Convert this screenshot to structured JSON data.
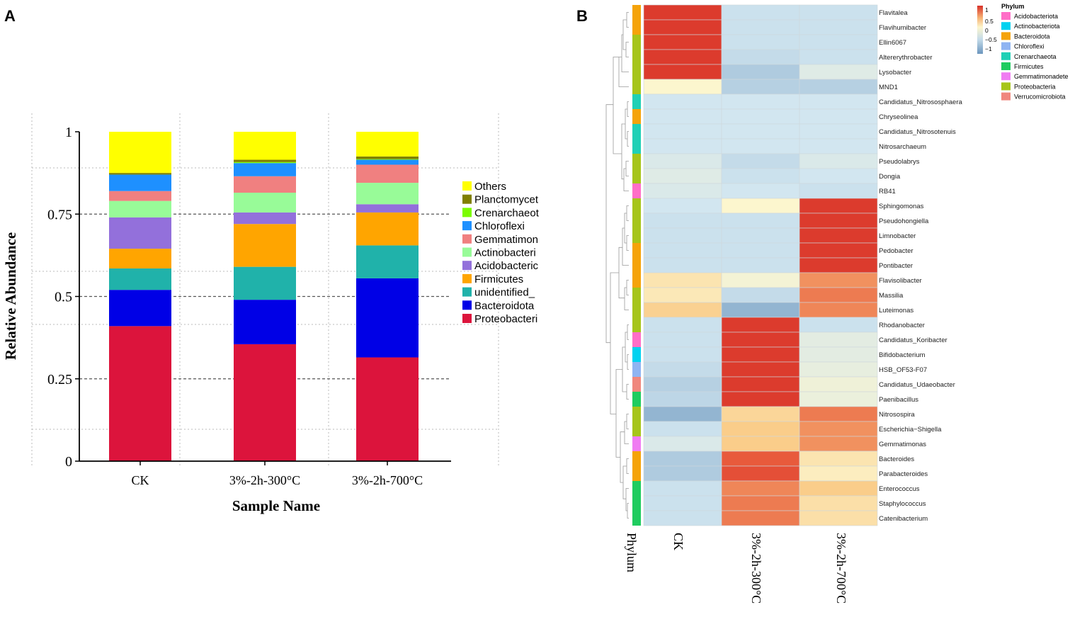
{
  "chart_data": [
    {
      "panel": "A",
      "type": "bar",
      "stacked": true,
      "xlabel": "Sample Name",
      "ylabel": "Relative Abundance",
      "ylim": [
        0,
        1
      ],
      "yticks": [
        "0",
        "0.25",
        "0.5",
        "0.75",
        "1"
      ],
      "grid": true,
      "legend_position": "right",
      "categories": [
        "CK",
        "3%-2h-300°C",
        "3%-2h-700°C"
      ],
      "series": [
        {
          "name": "Proteobacteri",
          "color": "#dc143c",
          "values": [
            0.41,
            0.355,
            0.315
          ]
        },
        {
          "name": "Bacteroidota",
          "color": "#0000e6",
          "values": [
            0.11,
            0.135,
            0.24
          ]
        },
        {
          "name": "unidentified_",
          "color": "#20b2aa",
          "values": [
            0.065,
            0.1,
            0.1
          ]
        },
        {
          "name": "Firmicutes",
          "color": "#ffa500",
          "values": [
            0.06,
            0.13,
            0.1
          ]
        },
        {
          "name": "Acidobacteric",
          "color": "#9370db",
          "values": [
            0.095,
            0.035,
            0.025
          ]
        },
        {
          "name": "Actinobacteri",
          "color": "#98fb98",
          "values": [
            0.05,
            0.06,
            0.065
          ]
        },
        {
          "name": "Gemmatimon",
          "color": "#f08080",
          "values": [
            0.03,
            0.05,
            0.055
          ]
        },
        {
          "name": "Chloroflexi",
          "color": "#1e90ff",
          "values": [
            0.05,
            0.04,
            0.015
          ]
        },
        {
          "name": "Crenarchaeot",
          "color": "#7cfc00",
          "values": [
            0.0,
            0.003,
            0.002
          ]
        },
        {
          "name": "Planctomycet",
          "color": "#808000",
          "values": [
            0.005,
            0.007,
            0.008
          ]
        },
        {
          "name": "Others",
          "color": "#ffff00",
          "values": [
            0.125,
            0.085,
            0.075
          ]
        }
      ]
    },
    {
      "panel": "B",
      "type": "heatmap",
      "columns": [
        "CK",
        "3%-2h-300°C",
        "3%-2h-700°C"
      ],
      "row_annotation_label": "Phylum",
      "color_scale": {
        "ticks": [
          "1",
          "0.5",
          "0",
          "−0.5",
          "−1"
        ]
      },
      "phylum_legend": {
        "title": "Phylum",
        "items": [
          {
            "name": "Acidobacteriota",
            "color": "#ff6ec7"
          },
          {
            "name": "Actinobacteriota",
            "color": "#00d2f0"
          },
          {
            "name": "Bacteroidota",
            "color": "#f5a30a"
          },
          {
            "name": "Chloroflexi",
            "color": "#8fb4f2"
          },
          {
            "name": "Crenarchaeota",
            "color": "#20d0b6"
          },
          {
            "name": "Firmicutes",
            "color": "#1fcc5f"
          },
          {
            "name": "Gemmatimonadete",
            "color": "#f07cf2"
          },
          {
            "name": "Proteobacteria",
            "color": "#a6c51a"
          },
          {
            "name": "Verrucomicrobiota",
            "color": "#f0877d"
          }
        ]
      },
      "rows": [
        {
          "genus": "Flavitalea",
          "phylum": "Bacteroidota",
          "values": [
            1.15,
            -0.55,
            -0.55
          ]
        },
        {
          "genus": "Flavihumibacter",
          "phylum": "Bacteroidota",
          "values": [
            1.15,
            -0.55,
            -0.55
          ]
        },
        {
          "genus": "Ellin6067",
          "phylum": "Proteobacteria",
          "values": [
            1.15,
            -0.55,
            -0.55
          ]
        },
        {
          "genus": "Altererythrobacter",
          "phylum": "Proteobacteria",
          "values": [
            1.15,
            -0.6,
            -0.55
          ]
        },
        {
          "genus": "Lysobacter",
          "phylum": "Proteobacteria",
          "values": [
            1.15,
            -0.75,
            -0.35
          ]
        },
        {
          "genus": "MND1",
          "phylum": "Proteobacteria",
          "values": [
            0.0,
            -0.7,
            -0.7
          ]
        },
        {
          "genus": "Candidatus_Nitrososphaera",
          "phylum": "Crenarchaeota",
          "values": [
            -0.5,
            -0.5,
            -0.5
          ]
        },
        {
          "genus": "Chryseolinea",
          "phylum": "Bacteroidota",
          "values": [
            -0.5,
            -0.5,
            -0.5
          ]
        },
        {
          "genus": "Candidatus_Nitrosotenuis",
          "phylum": "Crenarchaeota",
          "values": [
            -0.5,
            -0.5,
            -0.5
          ]
        },
        {
          "genus": "Nitrosarchaeum",
          "phylum": "Crenarchaeota",
          "values": [
            -0.5,
            -0.5,
            -0.5
          ]
        },
        {
          "genus": "Pseudolabrys",
          "phylum": "Proteobacteria",
          "values": [
            -0.4,
            -0.6,
            -0.4
          ]
        },
        {
          "genus": "Dongia",
          "phylum": "Proteobacteria",
          "values": [
            -0.35,
            -0.55,
            -0.5
          ]
        },
        {
          "genus": "RB41",
          "phylum": "Acidobacteriota",
          "values": [
            -0.4,
            -0.5,
            -0.55
          ]
        },
        {
          "genus": "Sphingomonas",
          "phylum": "Proteobacteria",
          "values": [
            -0.5,
            0.0,
            1.15
          ]
        },
        {
          "genus": "Pseudohongiella",
          "phylum": "Proteobacteria",
          "values": [
            -0.55,
            -0.55,
            1.15
          ]
        },
        {
          "genus": "Limnobacter",
          "phylum": "Proteobacteria",
          "values": [
            -0.55,
            -0.55,
            1.15
          ]
        },
        {
          "genus": "Pedobacter",
          "phylum": "Bacteroidota",
          "values": [
            -0.55,
            -0.55,
            1.15
          ]
        },
        {
          "genus": "Pontibacter",
          "phylum": "Bacteroidota",
          "values": [
            -0.55,
            -0.55,
            1.15
          ]
        },
        {
          "genus": "Flavisolibacter",
          "phylum": "Bacteroidota",
          "values": [
            0.2,
            -0.1,
            0.75
          ]
        },
        {
          "genus": "Massilia",
          "phylum": "Proteobacteria",
          "values": [
            0.15,
            -0.6,
            0.85
          ]
        },
        {
          "genus": "Luteimonas",
          "phylum": "Proteobacteria",
          "values": [
            0.4,
            -0.95,
            0.8
          ]
        },
        {
          "genus": "Rhodanobacter",
          "phylum": "Proteobacteria",
          "values": [
            -0.55,
            1.15,
            -0.55
          ]
        },
        {
          "genus": "Candidatus_Koribacter",
          "phylum": "Acidobacteriota",
          "values": [
            -0.55,
            1.15,
            -0.3
          ]
        },
        {
          "genus": "Bifidobacterium",
          "phylum": "Actinobacteriota",
          "values": [
            -0.55,
            1.15,
            -0.3
          ]
        },
        {
          "genus": "HSB_OF53-F07",
          "phylum": "Chloroflexi",
          "values": [
            -0.6,
            1.15,
            -0.25
          ]
        },
        {
          "genus": "Candidatus_Udaeobacter",
          "phylum": "Verrucomicrobiota",
          "values": [
            -0.7,
            1.15,
            -0.15
          ]
        },
        {
          "genus": "Paenibacillus",
          "phylum": "Firmicutes",
          "values": [
            -0.65,
            1.15,
            -0.2
          ]
        },
        {
          "genus": "Nitrosospira",
          "phylum": "Proteobacteria",
          "values": [
            -0.95,
            0.35,
            0.85
          ]
        },
        {
          "genus": "Escherichia−Shigella",
          "phylum": "Proteobacteria",
          "values": [
            -0.55,
            0.45,
            0.75
          ]
        },
        {
          "genus": "Gemmatimonas",
          "phylum": "Gemmatimonadete",
          "values": [
            -0.4,
            0.45,
            0.75
          ]
        },
        {
          "genus": "Bacteroides",
          "phylum": "Bacteroidota",
          "values": [
            -0.75,
            1.0,
            0.2
          ]
        },
        {
          "genus": "Parabacteroides",
          "phylum": "Bacteroidota",
          "values": [
            -0.75,
            1.05,
            0.1
          ]
        },
        {
          "genus": "Enterococcus",
          "phylum": "Firmicutes",
          "values": [
            -0.55,
            0.8,
            0.45
          ]
        },
        {
          "genus": "Staphylococcus",
          "phylum": "Firmicutes",
          "values": [
            -0.55,
            0.85,
            0.25
          ]
        },
        {
          "genus": "Catenibacterium",
          "phylum": "Firmicutes",
          "values": [
            -0.55,
            0.85,
            0.25
          ]
        }
      ]
    }
  ],
  "panels": {
    "a_label": "A",
    "b_label": "B"
  }
}
